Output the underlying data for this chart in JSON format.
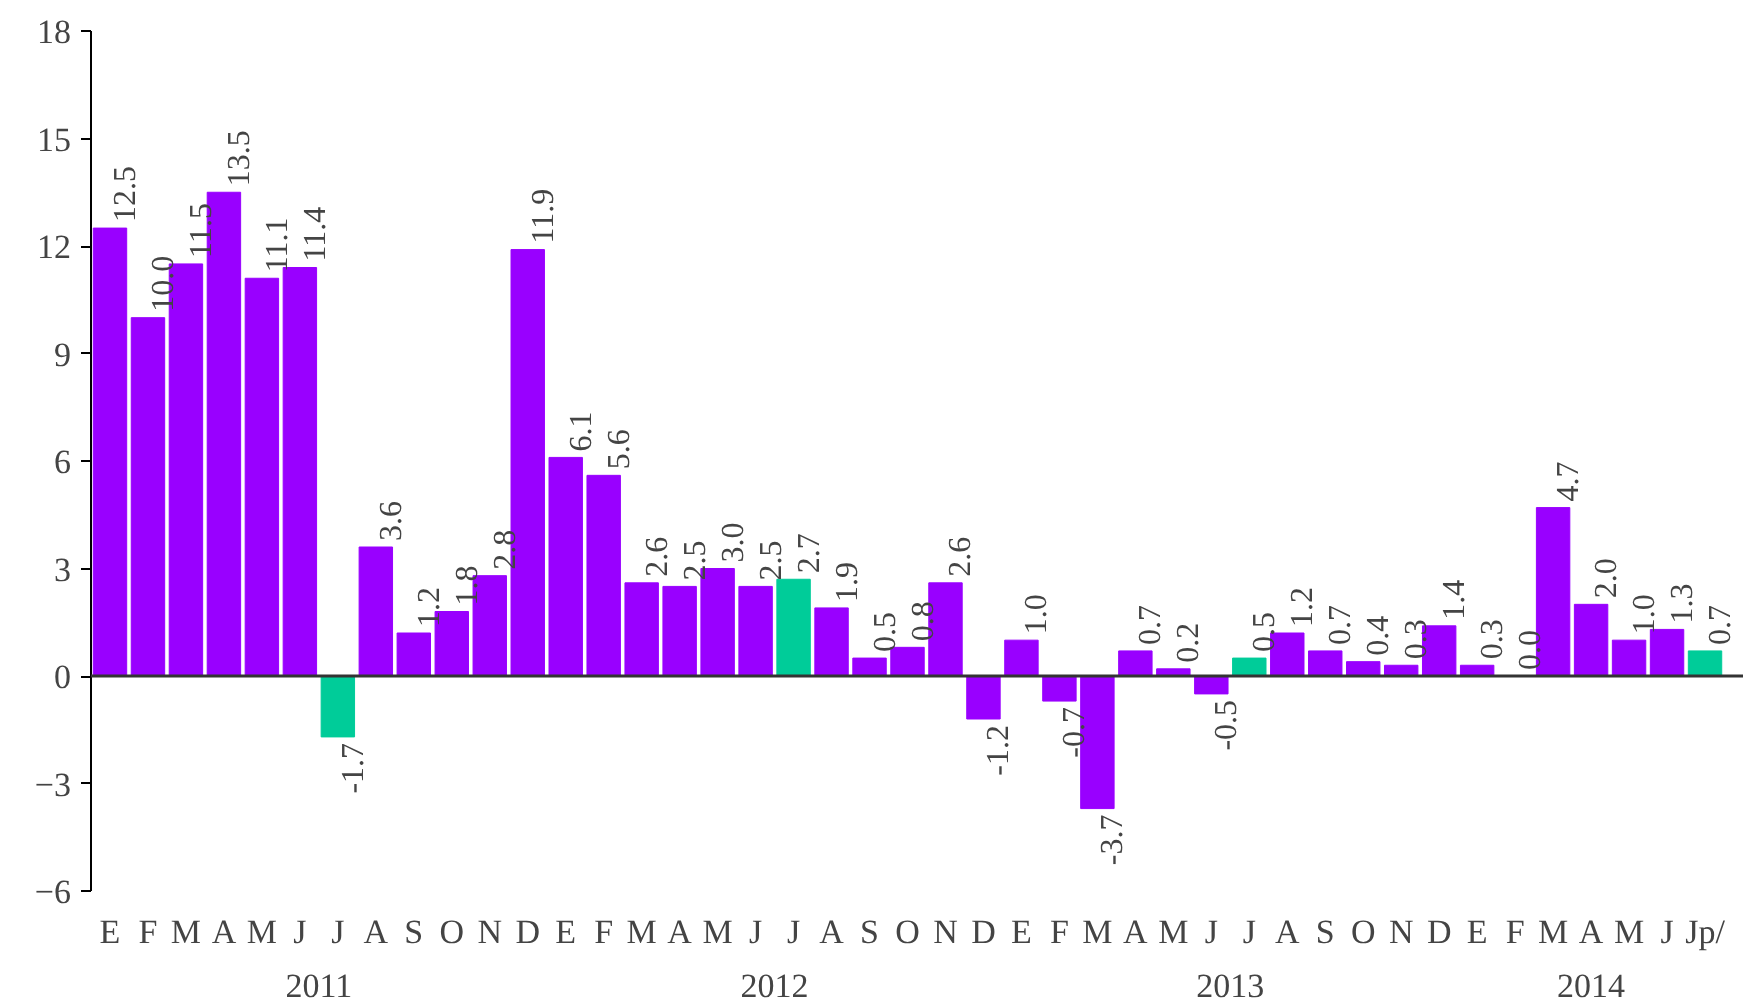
{
  "chart_data": {
    "type": "bar",
    "categories": [
      "E",
      "F",
      "M",
      "A",
      "M",
      "J",
      "J",
      "A",
      "S",
      "O",
      "N",
      "D",
      "E",
      "F",
      "M",
      "A",
      "M",
      "J",
      "J",
      "A",
      "S",
      "O",
      "N",
      "D",
      "E",
      "F",
      "M",
      "A",
      "M",
      "J",
      "J",
      "A",
      "S",
      "O",
      "N",
      "D",
      "E",
      "F",
      "M",
      "A",
      "M",
      "J",
      "Jp/"
    ],
    "values": [
      12.5,
      10.0,
      11.5,
      13.5,
      11.1,
      11.4,
      -1.7,
      3.6,
      1.2,
      1.8,
      2.8,
      11.9,
      6.1,
      5.6,
      2.6,
      2.5,
      3.0,
      2.5,
      2.7,
      1.9,
      0.5,
      0.8,
      2.6,
      -1.2,
      1.0,
      -0.7,
      -3.7,
      0.7,
      0.2,
      -0.5,
      0.5,
      1.2,
      0.7,
      0.4,
      0.3,
      1.4,
      0.3,
      0.0,
      4.7,
      2.0,
      1.0,
      1.3,
      0.7
    ],
    "colors": [
      "#9900ff",
      "#9900ff",
      "#9900ff",
      "#9900ff",
      "#9900ff",
      "#9900ff",
      "#00cc99",
      "#9900ff",
      "#9900ff",
      "#9900ff",
      "#9900ff",
      "#9900ff",
      "#9900ff",
      "#9900ff",
      "#9900ff",
      "#9900ff",
      "#9900ff",
      "#9900ff",
      "#00cc99",
      "#9900ff",
      "#9900ff",
      "#9900ff",
      "#9900ff",
      "#9900ff",
      "#9900ff",
      "#9900ff",
      "#9900ff",
      "#9900ff",
      "#9900ff",
      "#9900ff",
      "#00cc99",
      "#9900ff",
      "#9900ff",
      "#9900ff",
      "#9900ff",
      "#9900ff",
      "#9900ff",
      "#9900ff",
      "#9900ff",
      "#9900ff",
      "#9900ff",
      "#9900ff",
      "#00cc99"
    ],
    "ylim": [
      -6,
      18
    ],
    "yticks": [
      -6,
      -3,
      0,
      3,
      6,
      9,
      12,
      15,
      18
    ],
    "value_labels": [
      "12.5",
      "10.0",
      "11.5",
      "13.5",
      "11.1",
      "11.4",
      "-1.7",
      "3.6",
      "1.2",
      "1.8",
      "2.8",
      "11.9",
      "6.1",
      "5.6",
      "2.6",
      "2.5",
      "3.0",
      "2.5",
      "2.7",
      "1.9",
      "0.5",
      "0.8",
      "2.6",
      "-1.2",
      "1.0",
      "-0.7",
      "-3.7",
      "0.7",
      "0.2",
      "-0.5",
      "0.5",
      "1.2",
      "0.7",
      "0.4",
      "0.3",
      "1.4",
      "0.3",
      "0.0",
      "4.7",
      "2.0",
      "1.0",
      "1.3",
      "0.7"
    ],
    "ref_lines": [
      {
        "axis": "y",
        "value": 0,
        "color": "#333333"
      }
    ],
    "annotations": [
      "2011",
      "2012",
      "2013",
      "2014"
    ]
  }
}
